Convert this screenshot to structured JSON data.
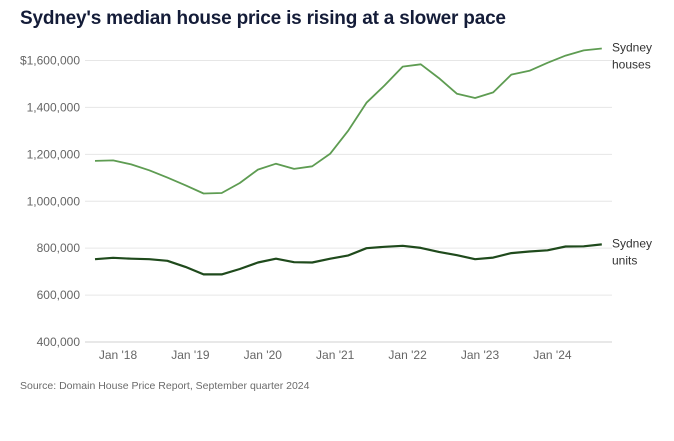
{
  "title": "Sydney's median house price is rising at a slower pace",
  "source": "Source: Domain House Price Report, September quarter 2024",
  "chart_data": {
    "type": "line",
    "title": "Sydney's median house price is rising at a slower pace",
    "xlabel": "",
    "ylabel": "",
    "ylim": [
      400000,
      1600000
    ],
    "yticks": [
      400000,
      600000,
      800000,
      1000000,
      1200000,
      1400000,
      1600000
    ],
    "ytick_labels": [
      "400,000",
      "600,000",
      "800,000",
      "1,000,000",
      "1,200,000",
      "1,400,000",
      "$1,600,000"
    ],
    "xtick_labels": [
      "Jan '18",
      "Jan '19",
      "Jan '20",
      "Jan '21",
      "Jan '22",
      "Jan '23",
      "Jan '24"
    ],
    "x": [
      "Sep 2017",
      "Dec 2017",
      "Mar 2018",
      "Jun 2018",
      "Sep 2018",
      "Dec 2018",
      "Mar 2019",
      "Jun 2019",
      "Sep 2019",
      "Dec 2019",
      "Mar 2020",
      "Jun 2020",
      "Sep 2020",
      "Dec 2020",
      "Mar 2021",
      "Jun 2021",
      "Sep 2021",
      "Dec 2021",
      "Mar 2022",
      "Jun 2022",
      "Sep 2022",
      "Dec 2022",
      "Mar 2023",
      "Jun 2023",
      "Sep 2023",
      "Dec 2023",
      "Mar 2024",
      "Jun 2024",
      "Sep 2024"
    ],
    "grid": true,
    "series": [
      {
        "name": "Sydney houses",
        "label_lines": [
          "Sydney",
          "houses"
        ],
        "color": "#5e9c52",
        "values": [
          1172000,
          1174000,
          1157000,
          1132000,
          1101000,
          1068000,
          1033000,
          1035000,
          1078000,
          1135000,
          1160000,
          1138000,
          1149000,
          1203000,
          1302000,
          1420000,
          1494000,
          1574000,
          1584000,
          1525000,
          1458000,
          1440000,
          1464000,
          1540000,
          1556000,
          1590000,
          1621000,
          1643000,
          1651000
        ]
      },
      {
        "name": "Sydney units",
        "label_lines": [
          "Sydney",
          "units"
        ],
        "color": "#1f4a1c",
        "values": [
          753000,
          759000,
          755000,
          753000,
          746000,
          720000,
          688000,
          688000,
          711000,
          739000,
          755000,
          740000,
          739000,
          755000,
          769000,
          800000,
          806000,
          810000,
          801000,
          784000,
          770000,
          753000,
          760000,
          779000,
          786000,
          791000,
          807000,
          808000,
          816000
        ]
      }
    ]
  }
}
